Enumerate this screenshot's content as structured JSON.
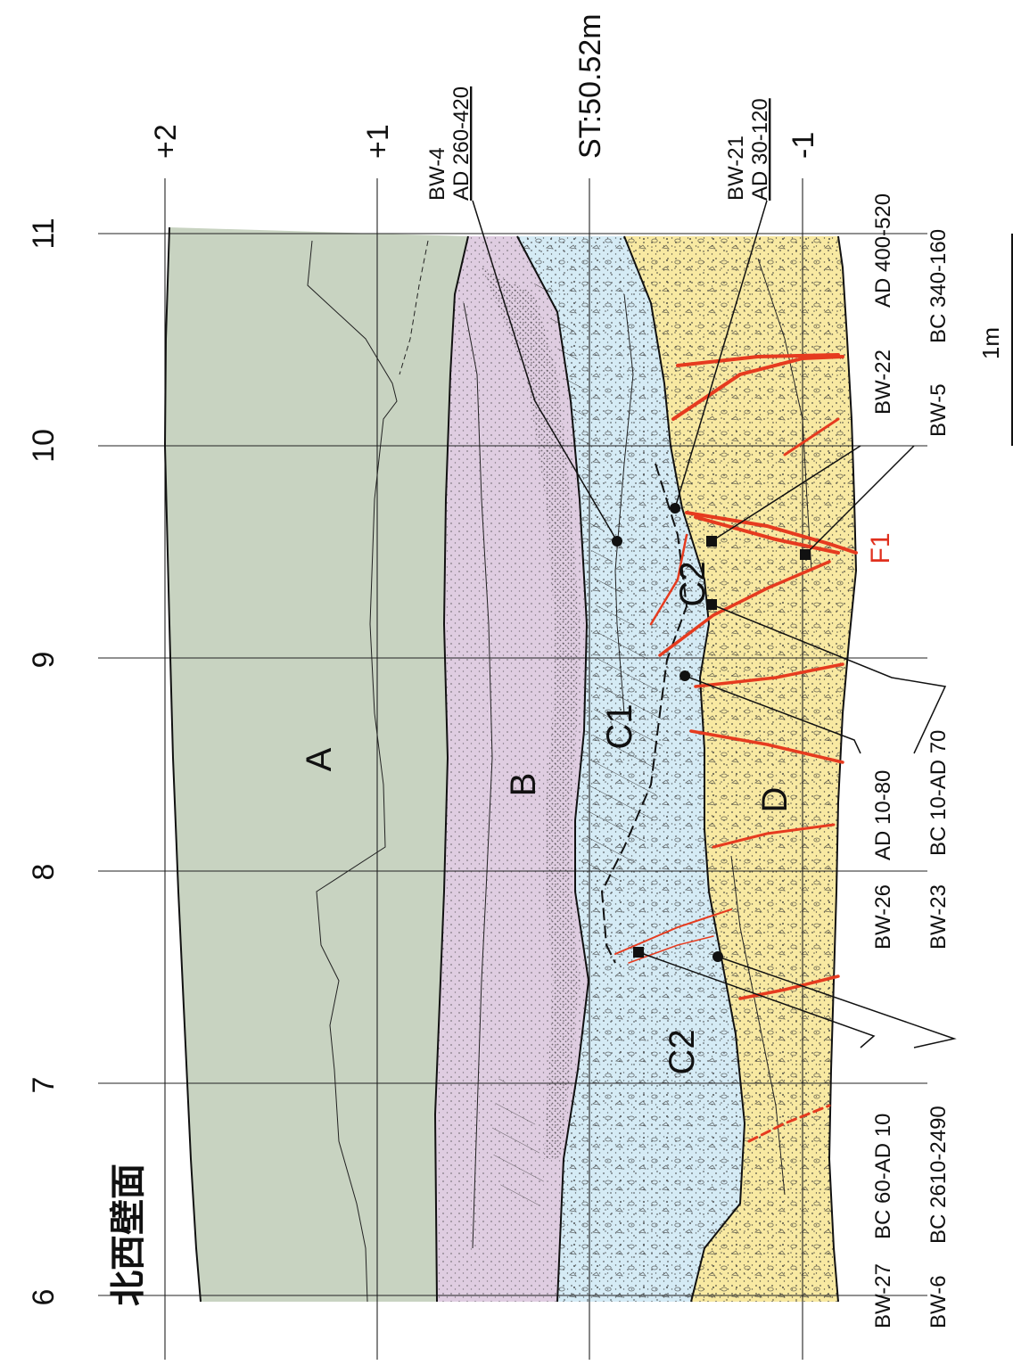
{
  "title": "北西壁面",
  "colors": {
    "unit_A": "#c8d3c1",
    "unit_B": "#dfcde1",
    "unit_C": "#d5ebf5",
    "unit_D": "#f8e9a2",
    "fault": "#e63b1f"
  },
  "x_axis_labels": [
    "6",
    "7",
    "8",
    "9",
    "10",
    "11"
  ],
  "y_axis_labels": [
    "+2",
    "+1",
    "ST:50.52m",
    "-1"
  ],
  "units": {
    "A": "A",
    "B": "B",
    "C1": "C1",
    "C2_upper": "C2",
    "C2_lower": "C2",
    "D": "D"
  },
  "fault_label": "F1",
  "scale_bar": "1m",
  "samples": {
    "bw4": {
      "id": "BW-4",
      "age": "AD 260-420"
    },
    "bw21": {
      "id": "BW-21",
      "age": "AD 30-120"
    },
    "bw22": {
      "id": "BW-22",
      "age": "AD 400-520"
    },
    "bw5": {
      "id": "BW-5",
      "age": "BC 340-160"
    },
    "bw26": {
      "id": "BW-26",
      "age": "AD 10-80"
    },
    "bw23": {
      "id": "BW-23",
      "age": "BC 10-AD 70"
    },
    "bw27": {
      "id": "BW-27",
      "age": "BC 60-AD 10"
    },
    "bw6": {
      "id": "BW-6",
      "age": "BC 2610-2490"
    }
  }
}
